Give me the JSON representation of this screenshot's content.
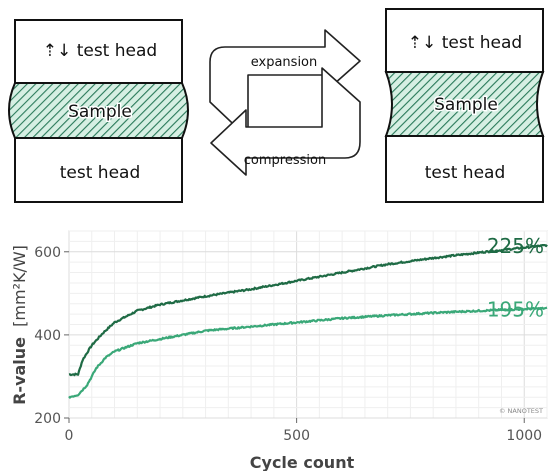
{
  "diagram": {
    "left": {
      "top_head": "⇡↓ test head",
      "sample": "Sample",
      "bottom_head": "test head"
    },
    "right": {
      "top_head": "⇡↓ test head",
      "sample": "Sample",
      "bottom_head": "test head"
    },
    "arrow_top_label": "expansion",
    "arrow_bottom_label": "compression",
    "colors": {
      "hatch": "#2a7a5a",
      "hatch_bg": "#d6efe3",
      "outline": "#111111"
    }
  },
  "chart_data": {
    "type": "line",
    "xlabel": "Cycle count",
    "ylabel_main": "R-value",
    "ylabel_unit": "[mm²K/W]",
    "xlim": [
      0,
      1050
    ],
    "ylim": [
      200,
      650
    ],
    "xticks": [
      0,
      500,
      1000
    ],
    "yticks": [
      200,
      400,
      600
    ],
    "grid": true,
    "watermark": "© NANOTEST",
    "series": [
      {
        "label": "225%",
        "color": "#1f6b45",
        "points": [
          [
            0,
            305
          ],
          [
            20,
            305
          ],
          [
            30,
            340
          ],
          [
            50,
            375
          ],
          [
            75,
            405
          ],
          [
            100,
            430
          ],
          [
            150,
            458
          ],
          [
            200,
            473
          ],
          [
            250,
            483
          ],
          [
            300,
            493
          ],
          [
            400,
            510
          ],
          [
            500,
            530
          ],
          [
            600,
            550
          ],
          [
            700,
            570
          ],
          [
            800,
            585
          ],
          [
            900,
            598
          ],
          [
            1000,
            610
          ],
          [
            1050,
            616
          ]
        ]
      },
      {
        "label": "195%",
        "color": "#3aa878",
        "points": [
          [
            0,
            250
          ],
          [
            20,
            256
          ],
          [
            40,
            280
          ],
          [
            60,
            320
          ],
          [
            80,
            345
          ],
          [
            100,
            360
          ],
          [
            150,
            380
          ],
          [
            200,
            390
          ],
          [
            250,
            400
          ],
          [
            300,
            410
          ],
          [
            400,
            420
          ],
          [
            500,
            430
          ],
          [
            600,
            440
          ],
          [
            700,
            447
          ],
          [
            800,
            453
          ],
          [
            900,
            458
          ],
          [
            1000,
            462
          ],
          [
            1050,
            464
          ]
        ]
      }
    ]
  }
}
